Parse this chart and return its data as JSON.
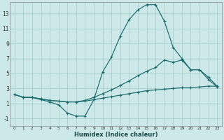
{
  "xlabel": "Humidex (Indice chaleur)",
  "background_color": "#cce8e8",
  "grid_color": "#aacece",
  "line_color": "#1a6b6b",
  "xlim": [
    -0.5,
    23.5
  ],
  "ylim": [
    -2,
    14.5
  ],
  "xticks": [
    0,
    1,
    2,
    3,
    4,
    5,
    6,
    7,
    8,
    9,
    10,
    11,
    12,
    13,
    14,
    15,
    16,
    17,
    18,
    19,
    20,
    21,
    22,
    23
  ],
  "yticks": [
    -1,
    1,
    3,
    5,
    7,
    9,
    11,
    13
  ],
  "series1_x": [
    0,
    1,
    2,
    3,
    4,
    5,
    6,
    7,
    8,
    9,
    10,
    11,
    12,
    13,
    14,
    15,
    16,
    17,
    18,
    19,
    20,
    21,
    22,
    23
  ],
  "series1_y": [
    2.2,
    1.8,
    1.8,
    1.5,
    1.2,
    0.8,
    -0.3,
    -0.7,
    -0.7,
    1.5,
    5.2,
    7.2,
    10.0,
    12.2,
    13.5,
    14.2,
    14.2,
    12.0,
    8.5,
    7.0,
    5.5,
    5.5,
    4.2,
    3.2
  ],
  "series2_x": [
    0,
    1,
    2,
    3,
    4,
    5,
    6,
    7,
    8,
    9,
    10,
    11,
    12,
    13,
    14,
    15,
    16,
    17,
    18,
    19,
    20,
    21,
    22,
    23
  ],
  "series2_y": [
    2.2,
    1.8,
    1.8,
    1.6,
    1.4,
    1.3,
    1.2,
    1.2,
    1.3,
    1.5,
    1.7,
    1.9,
    2.1,
    2.3,
    2.5,
    2.7,
    2.8,
    2.9,
    3.0,
    3.1,
    3.1,
    3.2,
    3.3,
    3.3
  ],
  "series3_x": [
    0,
    1,
    2,
    3,
    4,
    5,
    6,
    7,
    8,
    9,
    10,
    11,
    12,
    13,
    14,
    15,
    16,
    17,
    18,
    19,
    20,
    21,
    22,
    23
  ],
  "series3_y": [
    2.2,
    1.8,
    1.8,
    1.6,
    1.4,
    1.3,
    1.2,
    1.2,
    1.4,
    1.8,
    2.3,
    2.8,
    3.4,
    4.0,
    4.7,
    5.3,
    5.8,
    6.8,
    6.5,
    6.8,
    5.5,
    5.5,
    4.5,
    3.3
  ]
}
